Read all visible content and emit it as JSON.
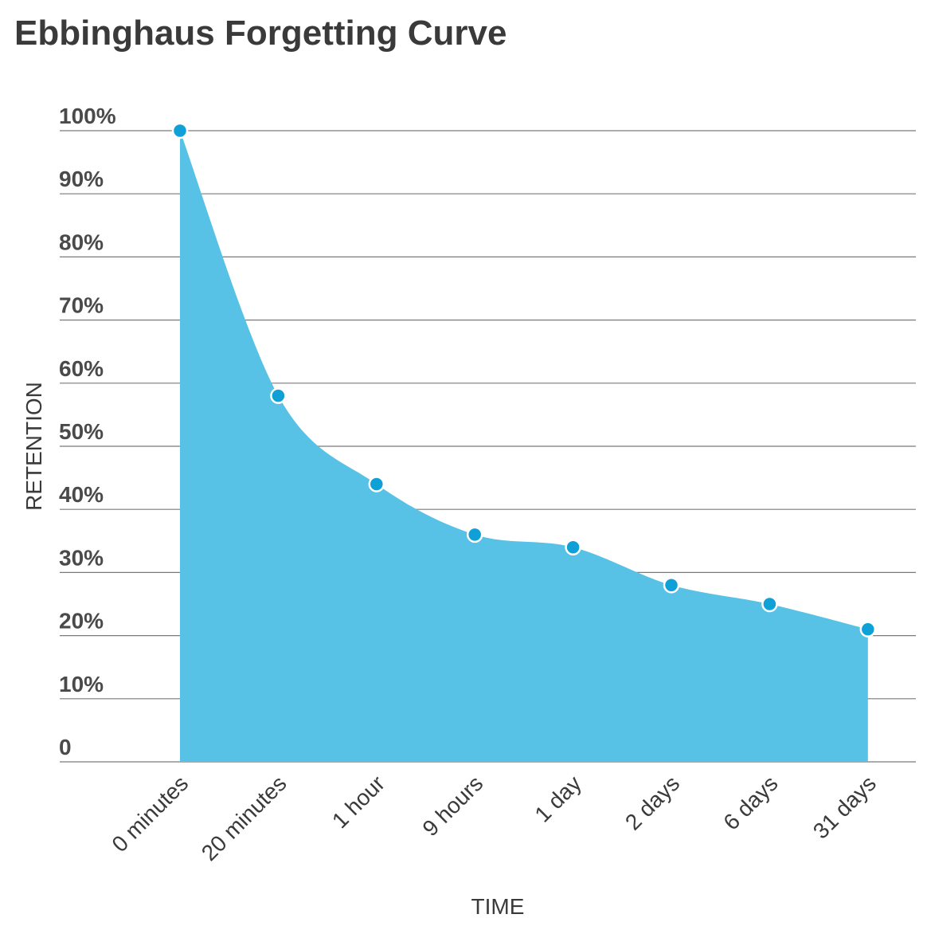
{
  "chart_data": {
    "type": "area",
    "title": "Ebbinghaus Forgetting Curve",
    "xlabel": "TIME",
    "ylabel": "RETENTION",
    "categories": [
      "0 minutes",
      "20 minutes",
      "1 hour",
      "9 hours",
      "1 day",
      "2 days",
      "6 days",
      "31 days"
    ],
    "series": [
      {
        "values": [
          100,
          58,
          44,
          36,
          34,
          28,
          25,
          21
        ]
      }
    ],
    "yticks": [
      0,
      10,
      20,
      30,
      40,
      50,
      60,
      70,
      80,
      90,
      100
    ],
    "ytick_labels": [
      "0",
      "10%",
      "20%",
      "30%",
      "40%",
      "50%",
      "60%",
      "70%",
      "80%",
      "90%",
      "100%"
    ],
    "ylim": [
      0,
      100
    ],
    "grid": true,
    "legend": "none",
    "colors": {
      "area": "#58c2e6",
      "marker": "#0fa0d8",
      "marker_outline": "#ffffff"
    }
  }
}
